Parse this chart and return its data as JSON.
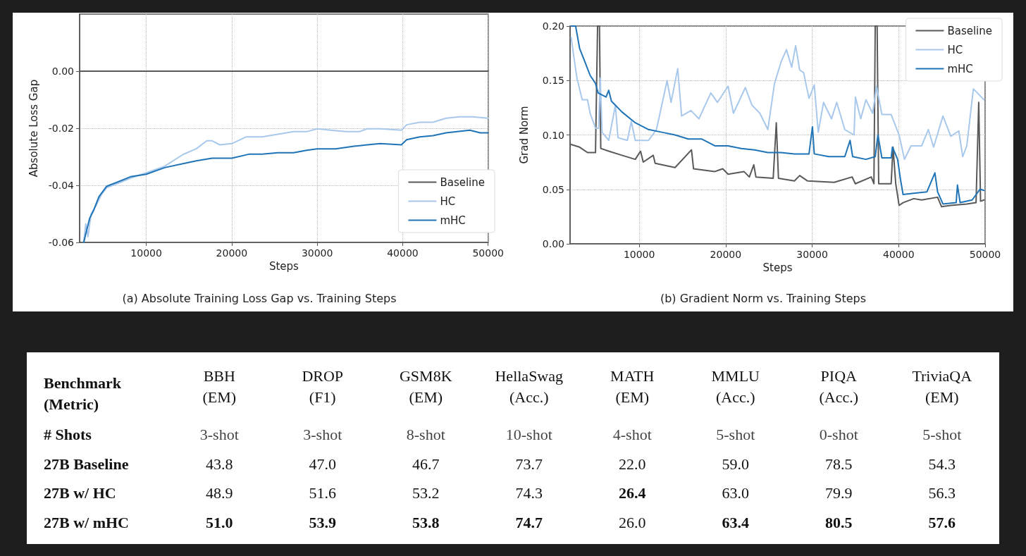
{
  "chart_data": [
    {
      "type": "line",
      "title": "(a) Absolute Training Loss Gap vs. Training Steps",
      "xlabel": "Steps",
      "ylabel": "Absolute Loss Gap",
      "xlim": [
        2200,
        50000
      ],
      "ylim": [
        -0.06,
        0.02
      ],
      "xticks": [
        10000,
        20000,
        30000,
        40000,
        50000
      ],
      "yticks": [
        -0.06,
        -0.04,
        -0.02,
        {
          "value": 0,
          "label": "0.00"
        }
      ],
      "grid": true,
      "legend": "bottom right",
      "line_style": "solid",
      "series": [
        {
          "name": "Baseline",
          "color": "#595959",
          "x": [
            2200,
            50000
          ],
          "values": [
            0,
            0
          ]
        },
        {
          "name": "HC",
          "color": "#a8c8ec",
          "x": [
            2680,
            2920,
            3170,
            3540,
            4150,
            4770,
            5380,
            6600,
            8150,
            10000,
            12150,
            14300,
            15850,
            17080,
            17700,
            18600,
            20000,
            21700,
            23540,
            25400,
            27230,
            28770,
            30000,
            31540,
            33380,
            34920,
            35850,
            37380,
            39850,
            40460,
            42000,
            43540,
            45080,
            46620,
            48150,
            50000
          ],
          "values": [
            -0.06,
            -0.0535,
            -0.058,
            -0.05,
            -0.0469,
            -0.0431,
            -0.0408,
            -0.0394,
            -0.0375,
            -0.0356,
            -0.0333,
            -0.0292,
            -0.0272,
            -0.0244,
            -0.0244,
            -0.0258,
            -0.0254,
            -0.023,
            -0.023,
            -0.0221,
            -0.0212,
            -0.0212,
            -0.0202,
            -0.0207,
            -0.0212,
            -0.0212,
            -0.0202,
            -0.0202,
            -0.0207,
            -0.0188,
            -0.0179,
            -0.0179,
            -0.0165,
            -0.016,
            -0.016,
            -0.0165
          ]
        },
        {
          "name": "mHC",
          "color": "#1f74b8",
          "x": [
            2680,
            2920,
            3380,
            3850,
            4460,
            5380,
            6600,
            8150,
            10000,
            12150,
            14300,
            15850,
            17700,
            20000,
            22000,
            23540,
            25400,
            27230,
            28770,
            30000,
            32150,
            34300,
            35850,
            37380,
            39850,
            40460,
            42000,
            43540,
            45080,
            47850,
            49080,
            50000
          ],
          "values": [
            -0.06,
            -0.057,
            -0.0515,
            -0.0487,
            -0.044,
            -0.0403,
            -0.0389,
            -0.037,
            -0.0361,
            -0.0338,
            -0.0324,
            -0.0314,
            -0.0305,
            -0.0305,
            -0.0291,
            -0.0291,
            -0.0286,
            -0.0286,
            -0.0277,
            -0.0272,
            -0.0272,
            -0.0263,
            -0.0258,
            -0.0254,
            -0.0258,
            -0.024,
            -0.023,
            -0.0226,
            -0.0216,
            -0.0207,
            -0.0216,
            -0.0216
          ]
        }
      ]
    },
    {
      "type": "line",
      "title": "(b) Gradient Norm vs. Training Steps",
      "xlabel": "Steps",
      "ylabel": "Grad Norm",
      "xlim": [
        2000,
        50000
      ],
      "ylim": [
        0,
        0.2
      ],
      "xticks": [
        10000,
        20000,
        30000,
        40000,
        50000
      ],
      "yticks": [
        {
          "value": 0,
          "label": "0.00"
        },
        {
          "value": 0.05,
          "label": "0.05"
        },
        {
          "value": 0.1,
          "label": "0.10"
        },
        {
          "value": 0.15,
          "label": "0.15"
        },
        {
          "value": 0.2,
          "label": "0.20"
        }
      ],
      "grid": true,
      "legend": "top right",
      "line_style": "solid",
      "series": [
        {
          "name": "Baseline",
          "color": "#595959",
          "x": [
            2120,
            3100,
            4020,
            4940,
            5180,
            5400,
            5550,
            6470,
            8000,
            9540,
            10150,
            10460,
            11620,
            11840,
            14140,
            16040,
            16280,
            18740,
            19660,
            20270,
            22110,
            22730,
            23250,
            23490,
            25490,
            25850,
            26100,
            27940,
            28550,
            29470,
            32540,
            34620,
            34990,
            36830,
            37140,
            37290,
            37510,
            37690,
            39130,
            39350,
            39660,
            40050,
            40510,
            41740,
            42660,
            44500,
            44960,
            46030,
            47880,
            48950,
            49260,
            49470,
            49870
          ],
          "values": [
            0.0913,
            0.0888,
            0.0838,
            0.0838,
            0.2,
            0.2,
            0.0876,
            0.0851,
            0.0813,
            0.0776,
            0.0851,
            0.0751,
            0.0813,
            0.0739,
            0.0701,
            0.0863,
            0.0689,
            0.0664,
            0.0689,
            0.0639,
            0.0664,
            0.0614,
            0.0726,
            0.0614,
            0.0602,
            0.1112,
            0.0602,
            0.0577,
            0.0627,
            0.0577,
            0.0565,
            0.0614,
            0.0552,
            0.0614,
            0.0552,
            0.2,
            0.2,
            0.0552,
            0.0552,
            0.0888,
            0.0552,
            0.0353,
            0.0378,
            0.0415,
            0.0403,
            0.0428,
            0.0341,
            0.0353,
            0.0366,
            0.0378,
            0.1299,
            0.0391,
            0.0403
          ]
        },
        {
          "name": "HC",
          "color": "#a8c8ec",
          "x": [
            2120,
            2790,
            3400,
            4020,
            4320,
            4940,
            5300,
            5490,
            5700,
            6470,
            7240,
            7540,
            8620,
            9080,
            9540,
            11070,
            11990,
            13220,
            13680,
            14450,
            14900,
            15980,
            16900,
            18280,
            19050,
            20270,
            20890,
            22270,
            23030,
            23950,
            24870,
            25640,
            26410,
            27020,
            27630,
            28090,
            28550,
            29010,
            29630,
            30240,
            30700,
            31310,
            32230,
            32840,
            33770,
            34840,
            35000,
            35610,
            36220,
            36990,
            37440,
            38060,
            39130,
            40050,
            40670,
            41430,
            42660,
            43430,
            44040,
            45120,
            46030,
            46960,
            47410,
            47880,
            48640,
            49100,
            49870
          ],
          "values": [
            0.1896,
            0.1522,
            0.1323,
            0.1323,
            0.1199,
            0.1062,
            0.1062,
            0.1522,
            0.1025,
            0.095,
            0.1274,
            0.0975,
            0.095,
            0.1124,
            0.095,
            0.095,
            0.105,
            0.1498,
            0.1299,
            0.1609,
            0.1174,
            0.1224,
            0.1149,
            0.1386,
            0.1299,
            0.1448,
            0.1199,
            0.1435,
            0.1274,
            0.1199,
            0.105,
            0.1473,
            0.1672,
            0.1784,
            0.1622,
            0.1821,
            0.1597,
            0.1572,
            0.1336,
            0.1461,
            0.1025,
            0.1299,
            0.1149,
            0.1299,
            0.105,
            0.1,
            0.1348,
            0.1149,
            0.1323,
            0.1199,
            0.1448,
            0.1187,
            0.1187,
            0.1,
            0.0776,
            0.09,
            0.09,
            0.105,
            0.0888,
            0.1174,
            0.0988,
            0.1037,
            0.0801,
            0.09,
            0.1423,
            0.1386,
            0.1323
          ]
        },
        {
          "name": "mHC",
          "color": "#1f74b8",
          "x": [
            2120,
            2640,
            3100,
            3710,
            4320,
            4940,
            5240,
            6160,
            6470,
            6780,
            8000,
            9540,
            11070,
            12600,
            14140,
            15670,
            17200,
            18740,
            20270,
            21800,
            23340,
            24870,
            26410,
            27940,
            29630,
            30030,
            30240,
            31920,
            33770,
            34380,
            34680,
            36220,
            37290,
            37600,
            38060,
            39130,
            39280,
            39880,
            40190,
            40510,
            41740,
            43270,
            44190,
            44500,
            45120,
            46650,
            46800,
            47110,
            48500,
            49420,
            49870
          ],
          "values": [
            0.2,
            0.2,
            0.1796,
            0.1672,
            0.1547,
            0.1473,
            0.1386,
            0.1348,
            0.141,
            0.1311,
            0.1211,
            0.1112,
            0.105,
            0.1025,
            0.1,
            0.0963,
            0.0963,
            0.09,
            0.09,
            0.0876,
            0.0863,
            0.0838,
            0.0838,
            0.0826,
            0.0826,
            0.1075,
            0.0826,
            0.0801,
            0.0801,
            0.095,
            0.0801,
            0.0776,
            0.0801,
            0.1,
            0.0789,
            0.0789,
            0.0888,
            0.0776,
            0.0602,
            0.0453,
            0.0465,
            0.0478,
            0.0652,
            0.0478,
            0.0366,
            0.0378,
            0.054,
            0.0378,
            0.0403,
            0.0502,
            0.049
          ]
        }
      ]
    },
    {
      "type": "heatmap",
      "xlabel": "Benchmark\n(Metric)",
      "categories": [
        "BBH\n(EM)",
        "DROP\n(F1)",
        "GSM8K\n(EM)",
        "HellaSwag\n(Acc.)",
        "MATH\n(EM)",
        "MMLU\n(Acc.)",
        "PIQA\n(Acc.)",
        "TriviaQA\n(EM)"
      ],
      "y_categories": [
        "# Shots",
        "27B Baseline",
        "27B w/ HC",
        "27B w/ mHC"
      ],
      "cells": [
        [
          null,
          null,
          null,
          null,
          null,
          null,
          null,
          null
        ],
        [
          43.8,
          47.0,
          46.7,
          73.7,
          22.0,
          59.0,
          78.5,
          54.3
        ],
        [
          48.9,
          51.6,
          53.2,
          74.3,
          26.4,
          63.0,
          79.9,
          56.3
        ],
        [
          51.0,
          53.9,
          53.8,
          74.7,
          26.0,
          63.4,
          80.5,
          57.6
        ]
      ],
      "cell_labels": [
        [
          "3-shot",
          "3-shot",
          "8-shot",
          "10-shot",
          "4-shot",
          "5-shot",
          "0-shot",
          "5-shot"
        ],
        [
          "43.8",
          "47.0",
          "46.7",
          "73.7",
          "22.0",
          "59.0",
          "78.5",
          "54.3"
        ],
        [
          "48.9",
          "51.6",
          "53.2",
          "74.3",
          "26.4",
          "63.0",
          "79.9",
          "56.3"
        ],
        [
          "51.0",
          "53.9",
          "53.8",
          "74.7",
          "26.0",
          "63.4",
          "80.5",
          "57.6"
        ]
      ]
    }
  ]
}
